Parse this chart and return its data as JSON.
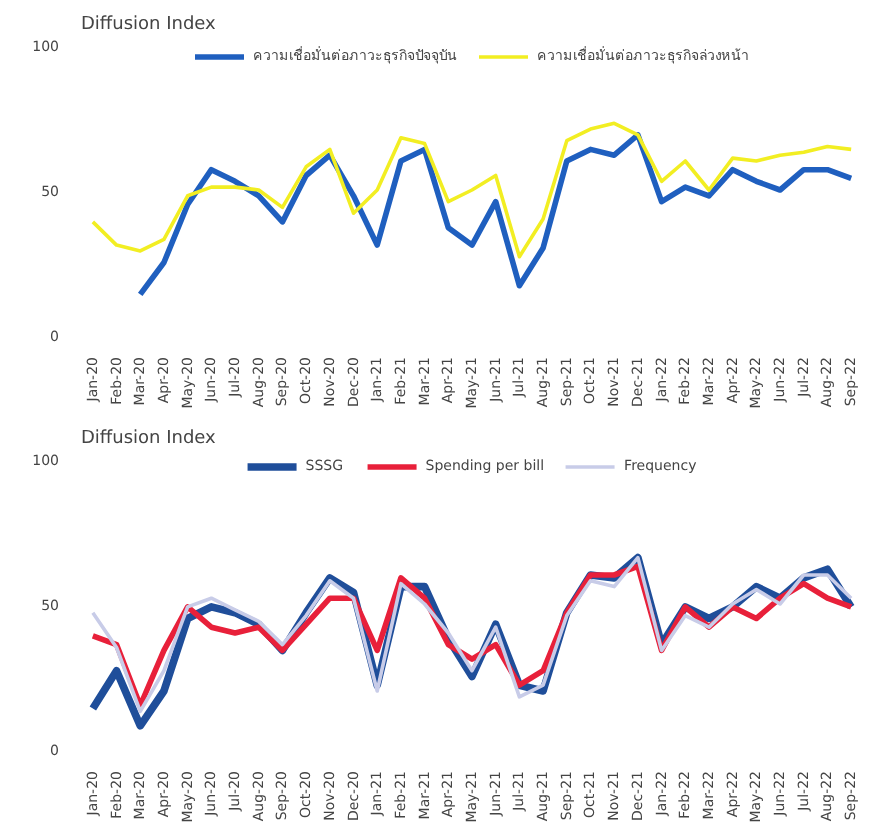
{
  "chart_data": [
    {
      "type": "line",
      "title": "Diffusion Index",
      "categories": [
        "Jan-20",
        "Feb-20",
        "Mar-20",
        "Apr-20",
        "May-20",
        "Jun-20",
        "Jul-20",
        "Aug-20",
        "Sep-20",
        "Oct-20",
        "Nov-20",
        "Dec-20",
        "Jan-21",
        "Feb-21",
        "Mar-21",
        "Apr-21",
        "May-21",
        "Jun-21",
        "Jul-21",
        "Aug-21",
        "Sep-21",
        "Oct-21",
        "Nov-21",
        "Dec-21",
        "Jan-22",
        "Feb-22",
        "Mar-22",
        "Apr-22",
        "May-22",
        "Jun-22",
        "Jul-22",
        "Aug-22",
        "Sep-22"
      ],
      "series": [
        {
          "name": "ความเชื่อมั่นต่อภาวะธุรกิจปัจจุบัน",
          "color": "#1f5fbf",
          "values": [
            null,
            null,
            14,
            25,
            45,
            57,
            53,
            48,
            39,
            55,
            62,
            48,
            31,
            60,
            64,
            37,
            31,
            46,
            17,
            30,
            60,
            64,
            62,
            69,
            46,
            51,
            48,
            57,
            53,
            50,
            57,
            57,
            54
          ]
        },
        {
          "name": "ความเชื่อมั่นต่อภาวะธุรกิจล่วงหน้า",
          "color": "#f2ee22",
          "values": [
            39,
            31,
            29,
            33,
            48,
            51,
            51,
            50,
            44,
            58,
            64,
            42,
            50,
            68,
            66,
            46,
            50,
            55,
            27,
            40,
            67,
            71,
            73,
            69,
            53,
            60,
            50,
            61,
            60,
            62,
            63,
            65,
            64
          ]
        }
      ],
      "ylim": [
        0,
        100
      ],
      "yticks": [
        0,
        50,
        100
      ],
      "legend": "top",
      "grid": false
    },
    {
      "type": "line",
      "title": "Diffusion Index",
      "categories": [
        "Jan-20",
        "Feb-20",
        "Mar-20",
        "Apr-20",
        "May-20",
        "Jun-20",
        "Jul-20",
        "Aug-20",
        "Sep-20",
        "Oct-20",
        "Nov-20",
        "Dec-20",
        "Jan-21",
        "Feb-21",
        "Mar-21",
        "Apr-21",
        "May-21",
        "Jun-21",
        "Jul-21",
        "Aug-21",
        "Sep-21",
        "Oct-21",
        "Nov-21",
        "Dec-21",
        "Jan-22",
        "Feb-22",
        "Mar-22",
        "Apr-22",
        "May-22",
        "Jun-22",
        "Jul-22",
        "Aug-22",
        "Sep-22"
      ],
      "series": [
        {
          "name": "SSSG",
          "color": "#1f4e9a",
          "values": [
            14,
            27,
            8,
            20,
            45,
            49,
            47,
            43,
            34,
            47,
            59,
            54,
            22,
            56,
            56,
            38,
            25,
            43,
            22,
            20,
            47,
            60,
            59,
            66,
            36,
            49,
            45,
            49,
            56,
            52,
            59,
            62,
            49
          ]
        },
        {
          "name": "Spending per bill",
          "color": "#e8203a",
          "values": [
            39,
            36,
            15,
            34,
            49,
            42,
            40,
            42,
            34,
            43,
            52,
            52,
            34,
            59,
            52,
            36,
            31,
            36,
            22,
            27,
            47,
            60,
            60,
            63,
            34,
            49,
            42,
            49,
            45,
            52,
            57,
            52,
            49
          ]
        },
        {
          "name": "Frequency",
          "color": "#c8cce8",
          "values": [
            47,
            35,
            13,
            27,
            49,
            52,
            48,
            44,
            36,
            46,
            58,
            52,
            20,
            57,
            50,
            40,
            27,
            42,
            18,
            22,
            46,
            58,
            56,
            66,
            34,
            46,
            42,
            50,
            55,
            50,
            60,
            60,
            52
          ]
        }
      ],
      "ylim": [
        0,
        100
      ],
      "yticks": [
        0,
        50,
        100
      ],
      "legend": "top",
      "grid": false
    }
  ]
}
